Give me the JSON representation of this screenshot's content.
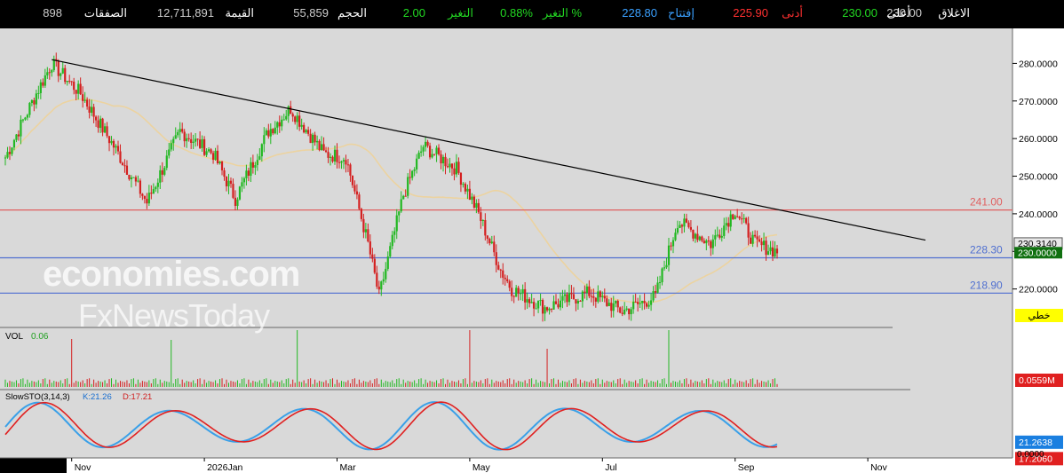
{
  "quote": {
    "close_label": "الاغلاق",
    "close": "230.00",
    "high_label": "أعلى",
    "high": "230.00",
    "low_label": "أدنى",
    "low": "225.90",
    "open_label": "إفتتاح",
    "open": "228.80",
    "change_pct_label": "التغير %",
    "change_pct": "0.88%",
    "change_label": "التغير",
    "change": "2.00",
    "volume_label": "الحجم",
    "volume": "55,859",
    "value_label": "القيمة",
    "value": "12,711,891",
    "trades_label": "الصفقات",
    "trades": "898"
  },
  "colors": {
    "up": "#22b822",
    "down": "#d42020",
    "bg": "#d9d9d9",
    "axis_bg": "#ffffff",
    "trend": "#000000",
    "ma": "#ecd3a0",
    "level_red": "#e06060",
    "level_blue": "#4f6fd0",
    "stoch_k": "#3aa0e8",
    "stoch_d": "#e02020",
    "badge_yellow": "#ffff00"
  },
  "watermark": {
    "line1": "economies.com",
    "line2": "FxNewsToday"
  },
  "chart_data": {
    "type": "candlestick",
    "y_ticks": [
      "280.0000",
      "270.0000",
      "260.0000",
      "250.0000",
      "240.0000",
      "230.0000",
      "220.0000"
    ],
    "ylim": [
      210,
      286
    ],
    "x_ticks": [
      "Nov",
      "2026Jan",
      "Mar",
      "May",
      "Jul",
      "Sep",
      "Nov"
    ],
    "series_key_points": [
      {
        "date": "Oct 01",
        "price": 255
      },
      {
        "date": "Oct 15",
        "price": 272
      },
      {
        "date": "Oct 22",
        "price": 280
      },
      {
        "date": "Nov 05",
        "price": 272
      },
      {
        "date": "Nov 20",
        "price": 258
      },
      {
        "date": "Dec 05",
        "price": 243
      },
      {
        "date": "Dec 20",
        "price": 262
      },
      {
        "date": "Jan 05",
        "price": 256
      },
      {
        "date": "Jan 15",
        "price": 244
      },
      {
        "date": "Jan 30",
        "price": 262
      },
      {
        "date": "Feb 10",
        "price": 268
      },
      {
        "date": "Feb 25",
        "price": 256
      },
      {
        "date": "Mar 05",
        "price": 255
      },
      {
        "date": "Mar 15",
        "price": 232
      },
      {
        "date": "Mar 20",
        "price": 218
      },
      {
        "date": "Apr 01",
        "price": 245
      },
      {
        "date": "Apr 10",
        "price": 258
      },
      {
        "date": "Apr 25",
        "price": 252
      },
      {
        "date": "May 05",
        "price": 240
      },
      {
        "date": "May 15",
        "price": 225
      },
      {
        "date": "May 20",
        "price": 220
      },
      {
        "date": "Jun 05",
        "price": 215
      },
      {
        "date": "Jun 25",
        "price": 219
      },
      {
        "date": "Jul 10",
        "price": 214
      },
      {
        "date": "Jul 25",
        "price": 218
      },
      {
        "date": "Aug 05",
        "price": 238
      },
      {
        "date": "Aug 20",
        "price": 232
      },
      {
        "date": "Sep 01",
        "price": 241
      },
      {
        "date": "Sep 10",
        "price": 232
      },
      {
        "date": "Sep 20",
        "price": 230
      }
    ],
    "trendline": {
      "from": {
        "date": "Oct 22",
        "price": 281
      },
      "to": {
        "date": "Nov 10",
        "price": 233
      }
    },
    "levels": [
      {
        "value": 241.0,
        "label": "241.00",
        "color": "red"
      },
      {
        "value": 228.3,
        "label": "228.30",
        "color": "blue"
      },
      {
        "value": 218.9,
        "label": "218.90",
        "color": "blue"
      }
    ],
    "price_badges": [
      {
        "label": "230.3140",
        "style": "grey"
      },
      {
        "label": "230.0000",
        "style": "green"
      }
    ],
    "overlay_badge": "خطي",
    "volume": {
      "label": "VOL",
      "value": "0.06",
      "badge": "0.0559M"
    },
    "stochastic": {
      "label": "SlowSTO(3,14,3)",
      "k_label": "K:21.26",
      "d_label": "D:17.21",
      "k_badge": "21.2638",
      "d_badge": "17.2060",
      "zero_tick": "0.0000"
    }
  }
}
